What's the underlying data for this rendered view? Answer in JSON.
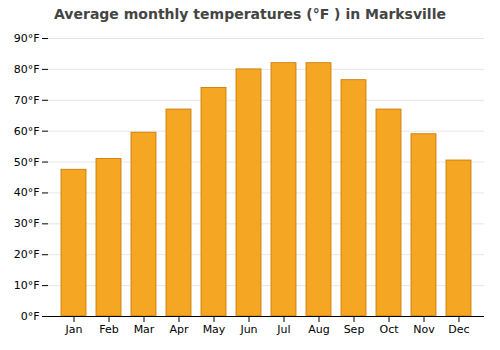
{
  "chart_data": {
    "type": "bar",
    "title": "Average monthly temperatures (°F ) in Marksville",
    "categories": [
      "Jan",
      "Feb",
      "Mar",
      "Apr",
      "May",
      "Jun",
      "Jul",
      "Aug",
      "Sep",
      "Oct",
      "Nov",
      "Dec"
    ],
    "values": [
      47.5,
      51.0,
      59.5,
      67.0,
      74.0,
      80.0,
      82.0,
      82.0,
      76.5,
      67.0,
      59.0,
      50.5
    ],
    "color": "#F5A623",
    "ylim": [
      0,
      90
    ],
    "yticks": [
      {
        "value": 0,
        "label": "0°F"
      },
      {
        "value": 10,
        "label": "10°F"
      },
      {
        "value": 20,
        "label": "20°F"
      },
      {
        "value": 30,
        "label": "30°F"
      },
      {
        "value": 40,
        "label": "40°F"
      },
      {
        "value": 50,
        "label": "50°F"
      },
      {
        "value": 60,
        "label": "60°F"
      },
      {
        "value": 70,
        "label": "70°F"
      },
      {
        "value": 80,
        "label": "80°F"
      },
      {
        "value": 90,
        "label": "90°F"
      }
    ],
    "grid": true
  }
}
